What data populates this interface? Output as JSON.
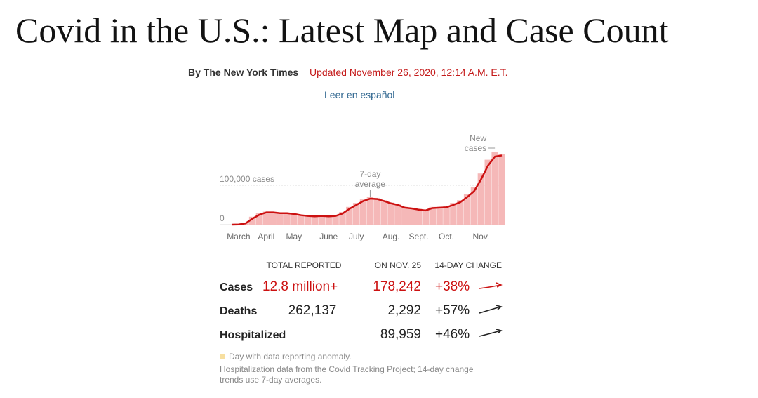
{
  "header": {
    "title": "Covid in the U.S.: Latest Map and Case Count",
    "byline": "By The New York Times",
    "updated": "Updated November 26, 2020, 12:14 A.M. E.T.",
    "link": "Leer en español"
  },
  "chart_data": {
    "type": "bar",
    "categories": [
      null,
      "March",
      null,
      null,
      null,
      "April",
      null,
      null,
      null,
      "May",
      null,
      null,
      null,
      null,
      "June",
      null,
      null,
      null,
      "July",
      null,
      null,
      null,
      null,
      "Aug.",
      null,
      null,
      null,
      "Sept.",
      null,
      null,
      null,
      "Oct.",
      null,
      null,
      null,
      null,
      "Nov.",
      null,
      null,
      null
    ],
    "series": [
      {
        "name": "New cases",
        "color": "#f5b8b8",
        "values": [
          100,
          1000,
          5000,
          20000,
          30000,
          33000,
          32000,
          31000,
          28000,
          29000,
          25000,
          24000,
          22000,
          23000,
          20000,
          24000,
          32000,
          45000,
          55000,
          64000,
          70000,
          68000,
          62000,
          56000,
          52000,
          45000,
          43000,
          40000,
          38000,
          45000,
          45000,
          48000,
          55000,
          62000,
          78000,
          95000,
          130000,
          165000,
          185000,
          180000
        ]
      },
      {
        "name": "7-day average",
        "color": "#cc1111",
        "values": [
          0,
          500,
          3000,
          15000,
          25000,
          31000,
          31000,
          29000,
          29000,
          27000,
          24000,
          22000,
          21000,
          22000,
          21000,
          22000,
          28000,
          40000,
          50000,
          60000,
          66000,
          65000,
          60000,
          54000,
          50000,
          43000,
          41000,
          38000,
          36000,
          42000,
          43000,
          44000,
          50000,
          57000,
          70000,
          85000,
          115000,
          150000,
          173000,
          176000
        ]
      }
    ],
    "ylim": [
      0,
      200000
    ],
    "yticks": [
      0,
      {
        "value": 100000,
        "label": "100,000 cases"
      }
    ],
    "grid": true,
    "annotations": [
      {
        "lines": [
          "New",
          "cases"
        ],
        "index": 38
      },
      {
        "lines": [
          "7-day",
          "average"
        ],
        "index": 20
      }
    ]
  },
  "table": {
    "headers": [
      "TOTAL REPORTED",
      "ON NOV. 25",
      "14-DAY CHANGE"
    ],
    "rows": [
      {
        "label": "Cases",
        "total": "12.8 million+",
        "today": "178,242",
        "change": "+38%"
      },
      {
        "label": "Deaths",
        "total": "262,137",
        "today": "2,292",
        "change": "+57%"
      },
      {
        "label": "Hospitalized",
        "total": null,
        "today": "89,959",
        "change": "+46%"
      }
    ]
  },
  "notes": {
    "legend": "Day with data reporting anomaly.",
    "source": [
      "Hospitalization data from the Covid Tracking Project; 14-day change",
      "trends use 7-day averages."
    ]
  }
}
